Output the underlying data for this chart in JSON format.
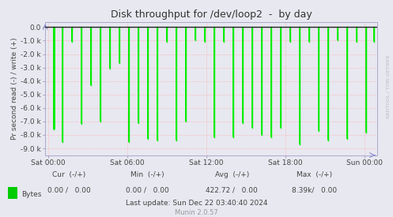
{
  "title": "Disk throughput for /dev/loop2  -  by day",
  "ylabel": "Pr second read (-) / write (+)",
  "bg_color": "#e8e8f0",
  "plot_bg_color": "#e8e8f0",
  "grid_color": "#ffaaaa",
  "border_color": "#aaaacc",
  "yticks": [
    0.0,
    -1000,
    -2000,
    -3000,
    -4000,
    -5000,
    -6000,
    -7000,
    -8000,
    -9000
  ],
  "ytick_labels": [
    "0.0",
    "-1.0 k",
    "-2.0 k",
    "-3.0 k",
    "-4.0 k",
    "-5.0 k",
    "-6.0 k",
    "-7.0 k",
    "-8.0 k",
    "-9.0 k"
  ],
  "ylim": [
    -9500,
    400
  ],
  "xlim": [
    -0.01,
    1.04
  ],
  "xtick_positions": [
    0.0,
    0.25,
    0.5,
    0.75,
    1.0
  ],
  "xtick_labels": [
    "Sat 00:00",
    "Sat 06:00",
    "Sat 12:00",
    "Sat 18:00",
    "Sun 00:00"
  ],
  "line_color": "#00ee00",
  "top_line_color": "#222222",
  "spike_positions": [
    0.018,
    0.045,
    0.075,
    0.105,
    0.135,
    0.165,
    0.195,
    0.225,
    0.255,
    0.285,
    0.315,
    0.345,
    0.375,
    0.405,
    0.435,
    0.465,
    0.495,
    0.525,
    0.555,
    0.585,
    0.615,
    0.645,
    0.675,
    0.705,
    0.735,
    0.765,
    0.795,
    0.825,
    0.855,
    0.885,
    0.915,
    0.945,
    0.975,
    1.005,
    1.03
  ],
  "spike_depths": [
    -7600,
    -8500,
    -1100,
    -7200,
    -4300,
    -7000,
    -3100,
    -2700,
    -8500,
    -7100,
    -8300,
    -8400,
    -1100,
    -8400,
    -7000,
    -1000,
    -1100,
    -8200,
    -1100,
    -8200,
    -7100,
    -7500,
    -8000,
    -8200,
    -7500,
    -1100,
    -8700,
    -1100,
    -7700,
    -8400,
    -1000,
    -8300,
    -1100,
    -7800,
    -1100
  ],
  "legend_label": "Bytes",
  "legend_color": "#00cc00",
  "title_fontsize": 9,
  "axis_fontsize": 7,
  "tick_fontsize": 6.5,
  "footer_fontsize": 6.5,
  "top_line_color2": "#cc0000",
  "rrdtool_label": "RRDTOOL / TOBI OETIKER"
}
